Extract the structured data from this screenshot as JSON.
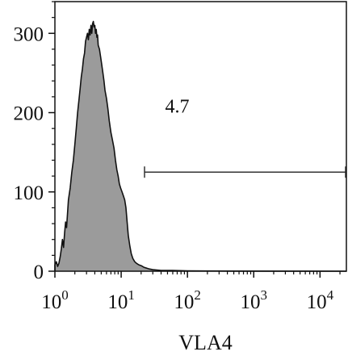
{
  "chart_data": {
    "type": "area",
    "title": "",
    "xlabel": "VLA4",
    "ylabel": "",
    "x_scale": "log10",
    "xlim": [
      1,
      25000
    ],
    "ylim": [
      0,
      340
    ],
    "x_ticks": [
      {
        "value": 1,
        "base": "10",
        "exp": "0"
      },
      {
        "value": 10,
        "base": "10",
        "exp": "1"
      },
      {
        "value": 100,
        "base": "10",
        "exp": "2"
      },
      {
        "value": 1000,
        "base": "10",
        "exp": "3"
      },
      {
        "value": 10000,
        "base": "10",
        "exp": "4"
      }
    ],
    "y_ticks": [
      {
        "value": 0,
        "label": "0"
      },
      {
        "value": 100,
        "label": "100"
      },
      {
        "value": 200,
        "label": "200"
      },
      {
        "value": 300,
        "label": "300"
      }
    ],
    "grid": false,
    "legend": "none",
    "fill_color": "#9b9b9b",
    "line_color": "#111111",
    "series": [
      {
        "x": [
          0.95,
          1.0,
          1.05,
          1.1,
          1.15,
          1.2,
          1.25,
          1.3,
          1.35,
          1.4,
          1.45,
          1.5,
          1.6,
          1.7,
          1.8,
          1.9,
          2.0,
          2.1,
          2.2,
          2.3,
          2.4,
          2.5,
          2.6,
          2.7,
          2.8,
          2.9,
          3.0,
          3.1,
          3.2,
          3.3,
          3.4,
          3.5,
          3.6,
          3.7,
          3.8,
          3.9,
          4.0,
          4.1,
          4.2,
          4.3,
          4.4,
          4.5,
          4.7,
          4.9,
          5.1,
          5.3,
          5.5,
          5.7,
          6.0,
          6.3,
          6.6,
          7.0,
          7.4,
          7.8,
          8.2,
          8.6,
          9.0,
          9.4,
          9.8,
          10.3,
          10.8,
          11.3,
          11.8,
          12.3,
          12.8,
          13.5,
          14.2,
          15.0,
          16.0,
          17.0,
          18.5,
          20.0,
          22.0,
          24.0,
          26.0,
          30.0,
          40.0,
          60.0,
          100.0,
          500.0,
          25000.0
        ],
        "y": [
          0,
          8,
          12,
          6,
          10,
          18,
          28,
          40,
          30,
          48,
          62,
          55,
          90,
          105,
          125,
          140,
          160,
          180,
          200,
          215,
          230,
          245,
          255,
          268,
          275,
          290,
          295,
          300,
          292,
          305,
          298,
          310,
          300,
          312,
          315,
          308,
          310,
          300,
          305,
          295,
          298,
          285,
          280,
          270,
          260,
          250,
          240,
          228,
          218,
          205,
          190,
          175,
          165,
          155,
          140,
          128,
          120,
          110,
          105,
          100,
          95,
          90,
          80,
          62,
          45,
          32,
          22,
          16,
          12,
          10,
          8,
          7,
          5,
          4,
          3,
          2,
          1,
          1,
          0.5,
          0.2,
          0
        ]
      }
    ],
    "gate": {
      "from": 22.5,
      "to": 25000,
      "y": 125,
      "label": "4.7",
      "label_x": 70,
      "label_y": 200
    }
  }
}
